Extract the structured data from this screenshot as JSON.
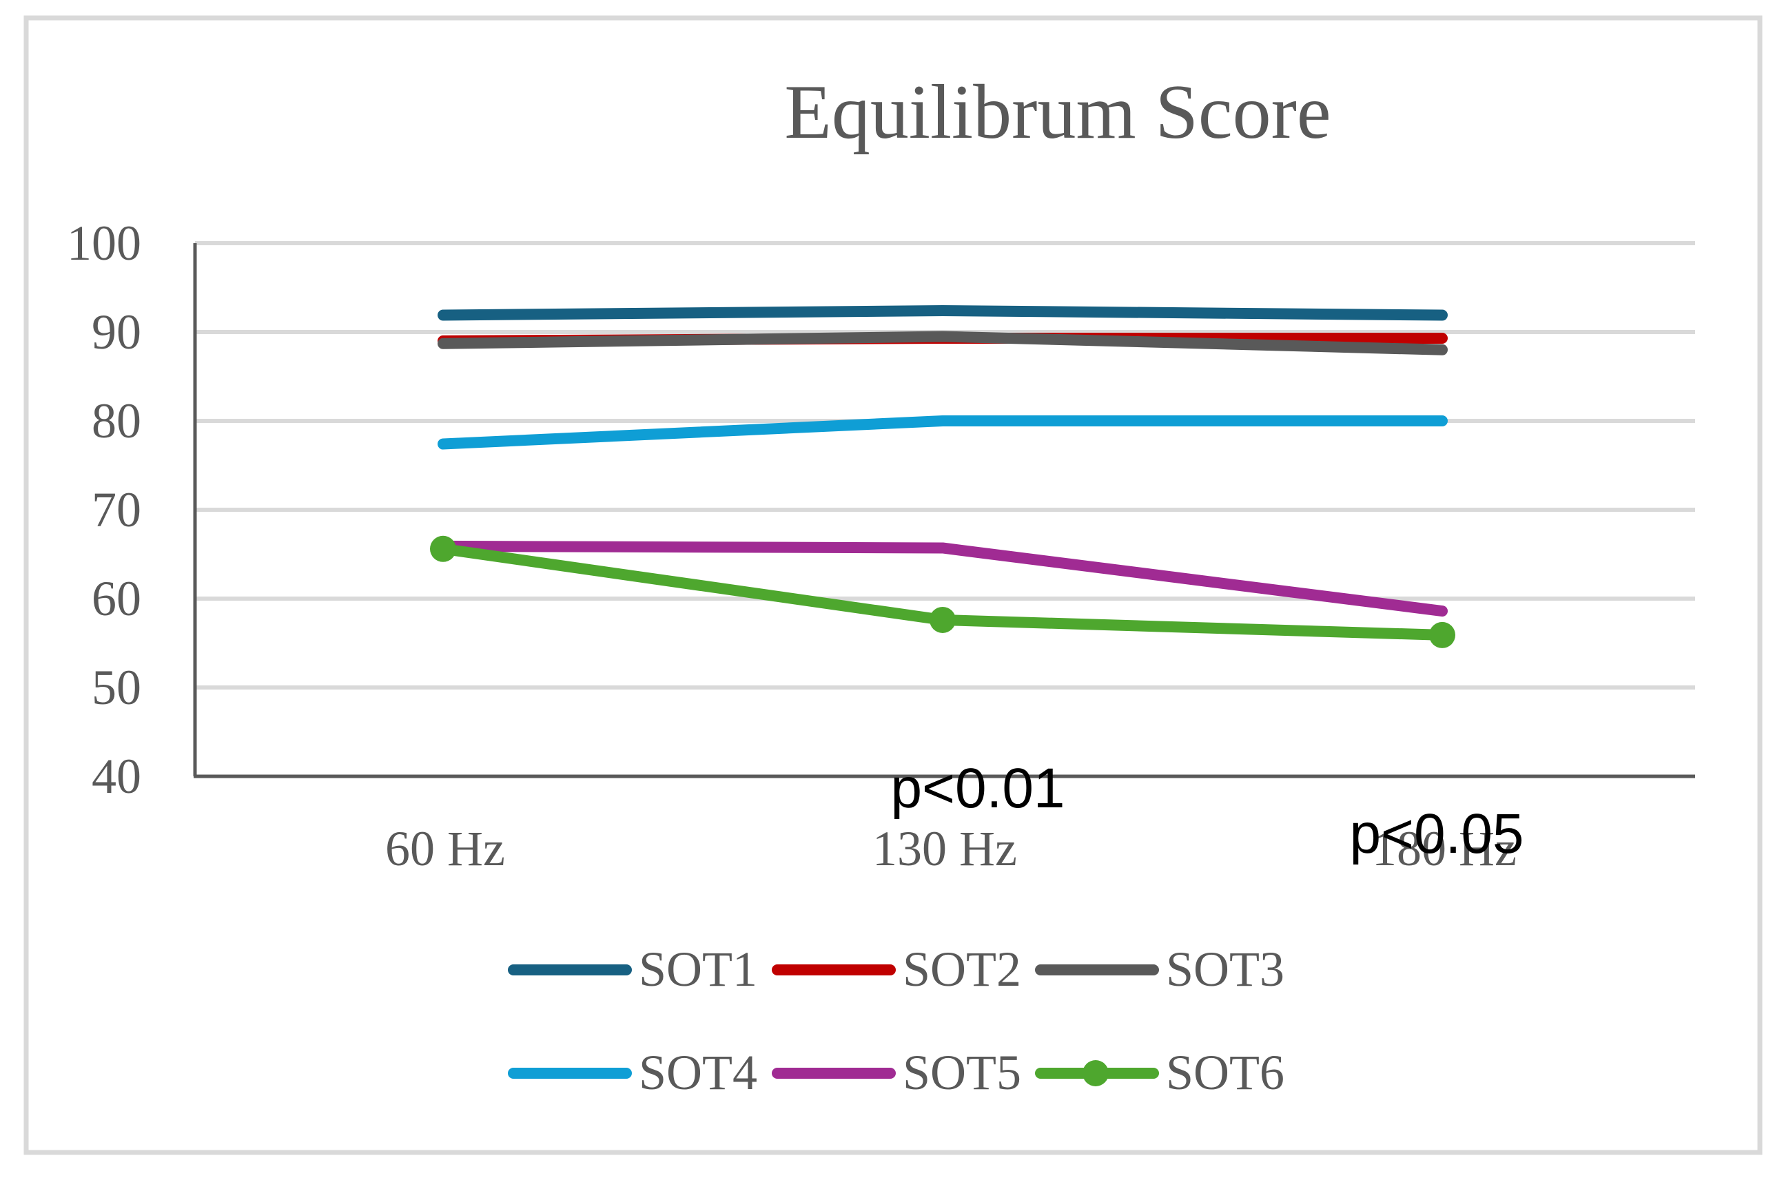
{
  "chart_data": {
    "type": "line",
    "title": "Equilibrum Score",
    "xlabel": "",
    "ylabel": "",
    "categories": [
      "60 Hz",
      "130 Hz",
      "180 Hz"
    ],
    "ylim": [
      40,
      100
    ],
    "yticks": [
      100,
      90,
      80,
      70,
      60,
      50,
      40
    ],
    "grid": true,
    "legend_position": "bottom",
    "series": [
      {
        "name": "SOT1",
        "color": "#176082",
        "marker": "none",
        "values": [
          91.9,
          92.4,
          91.9
        ]
      },
      {
        "name": "SOT2",
        "color": "#C00000",
        "marker": "none",
        "values": [
          89.0,
          89.3,
          89.3
        ]
      },
      {
        "name": "SOT3",
        "color": "#595959",
        "marker": "none",
        "values": [
          88.7,
          89.5,
          88.0
        ]
      },
      {
        "name": "SOT4",
        "color": "#0F9ED5",
        "marker": "none",
        "values": [
          77.4,
          80.0,
          80.0
        ]
      },
      {
        "name": "SOT5",
        "color": "#A02B93",
        "marker": "none",
        "values": [
          65.9,
          65.7,
          58.6
        ]
      },
      {
        "name": "SOT6",
        "color": "#4EA72E",
        "marker": "circle",
        "values": [
          65.6,
          57.6,
          55.9
        ]
      }
    ],
    "annotations": [
      {
        "text": "p<0.01",
        "category": "130 Hz"
      },
      {
        "text": "p<0.05",
        "category": "180 Hz"
      }
    ]
  },
  "colors": {
    "text": "#595959",
    "gridline": "#D9D9D9",
    "axis": "#595959",
    "border": "#D9D9D9",
    "annotation": "#000000"
  }
}
